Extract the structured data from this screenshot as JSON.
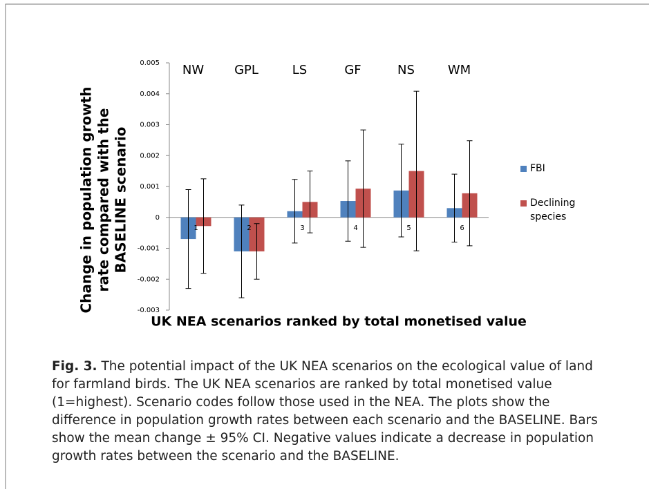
{
  "chart_data": {
    "type": "bar",
    "ylabel": "Change in population growth rate compared with the BASELINE scenario",
    "xlabel": "UK NEA scenarios ranked by total monetised value",
    "categories": [
      "1",
      "2",
      "3",
      "4",
      "5",
      "6"
    ],
    "scenario_codes": [
      "NW",
      "GPL",
      "LS",
      "GF",
      "NS",
      "WM"
    ],
    "series": [
      {
        "name": "FBI",
        "color": "#4f81bd",
        "values": [
          -0.0007,
          -0.0011,
          0.0002,
          0.00053,
          0.00087,
          0.0003
        ],
        "errors": [
          0.0016,
          0.0015,
          0.00103,
          0.0013,
          0.0015,
          0.0011
        ]
      },
      {
        "name": "Declining species",
        "color": "#c0504d",
        "values": [
          -0.00028,
          -0.0011,
          0.0005,
          0.00093,
          0.0015,
          0.00078
        ],
        "errors": [
          0.00153,
          0.0009,
          0.001,
          0.0019,
          0.00258,
          0.0017
        ]
      }
    ],
    "ylim": [
      -0.003,
      0.005
    ],
    "yticks": [
      -0.003,
      -0.002,
      -0.001,
      0,
      0.001,
      0.002,
      0.003,
      0.004,
      0.005
    ],
    "grid": false,
    "legend": "right"
  },
  "caption": {
    "label": "Fig. 3.",
    "text": "The potential impact of the UK NEA scenarios on the ecological value of land for farmland birds. The UK NEA scenarios are ranked by total monetised value (1=highest). Scenario codes follow those used in the NEA. The plots show the difference in population growth rates between each scenario and the BASELINE. Bars show the mean change ± 95% CI. Negative values indicate a decrease in population growth rates between the scenario and the BASELINE."
  }
}
